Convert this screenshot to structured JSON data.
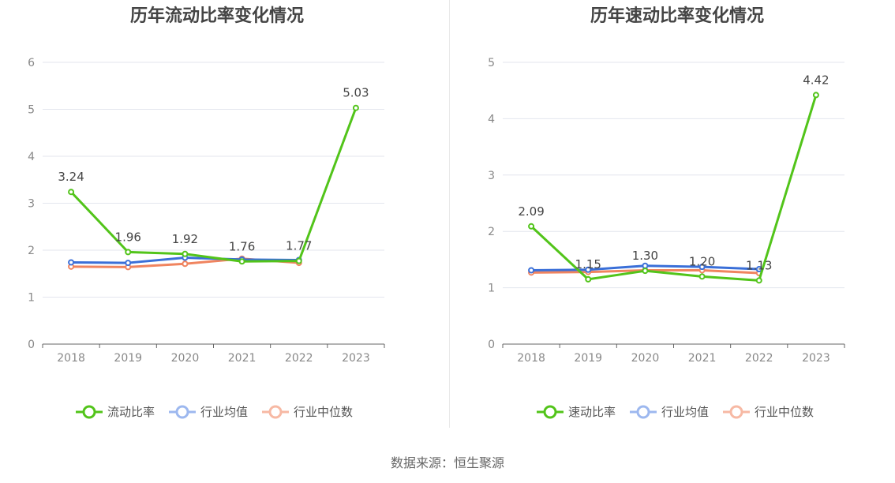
{
  "colors": {
    "series1": "#52c41a",
    "industry_avg": "#3a6fd8",
    "industry_median": "#f0845f",
    "grid": "#e3e6ee",
    "axis": "#666666",
    "tick_text": "#888888"
  },
  "chart_data": [
    {
      "type": "line",
      "title": "历年流动比率变化情况",
      "x": [
        "2018",
        "2019",
        "2020",
        "2021",
        "2022",
        "2023"
      ],
      "ylim": [
        0,
        6
      ],
      "yticks": [
        "0",
        "1",
        "2",
        "3",
        "4",
        "5",
        "6"
      ],
      "grid": true,
      "legend_placement": "bottom",
      "series": [
        {
          "name": "流动比率",
          "values": [
            3.24,
            1.96,
            1.92,
            1.76,
            1.77,
            5.03
          ],
          "labels": [
            "3.24",
            "1.96",
            "1.92",
            "1.76",
            "1.77",
            "5.03"
          ]
        },
        {
          "name": "行业均值",
          "values": [
            1.74,
            1.73,
            1.84,
            1.8,
            1.79,
            null
          ]
        },
        {
          "name": "行业中位数",
          "values": [
            1.65,
            1.64,
            1.71,
            1.82,
            1.73,
            null
          ]
        }
      ]
    },
    {
      "type": "line",
      "title": "历年速动比率变化情况",
      "x": [
        "2018",
        "2019",
        "2020",
        "2021",
        "2022",
        "2023"
      ],
      "ylim": [
        0,
        5
      ],
      "yticks": [
        "0",
        "1",
        "2",
        "3",
        "4",
        "5"
      ],
      "grid": true,
      "legend_placement": "bottom",
      "series": [
        {
          "name": "速动比率",
          "values": [
            2.09,
            1.15,
            1.3,
            1.2,
            1.13,
            4.42
          ],
          "labels": [
            "2.09",
            "1.15",
            "1.30",
            "1.20",
            "1.13",
            "4.42"
          ]
        },
        {
          "name": "行业均值",
          "values": [
            1.31,
            1.32,
            1.39,
            1.37,
            1.33,
            null
          ]
        },
        {
          "name": "行业中位数",
          "values": [
            1.27,
            1.28,
            1.31,
            1.31,
            1.26,
            null
          ]
        }
      ]
    }
  ],
  "footer": {
    "source": "数据来源：恒生聚源"
  }
}
